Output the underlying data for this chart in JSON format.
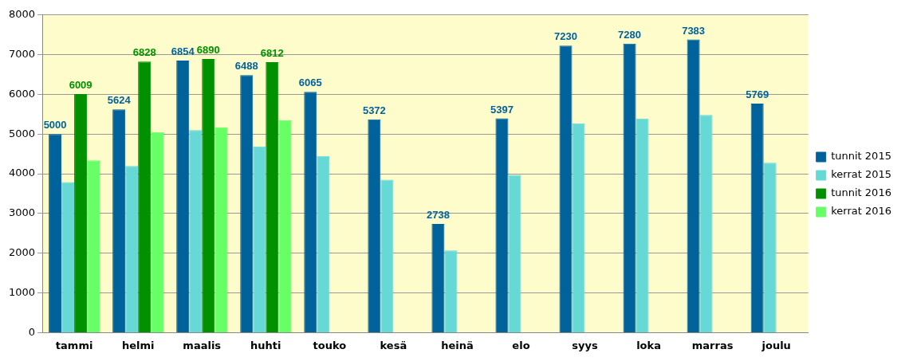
{
  "chart_data": {
    "type": "bar",
    "categories": [
      "tammi",
      "helmi",
      "maalis",
      "huhti",
      "touko",
      "kesä",
      "heinä",
      "elo",
      "syys",
      "loka",
      "marras",
      "joulu"
    ],
    "series": [
      {
        "name": "tunnit 2015",
        "color": "#00629b",
        "values": [
          5000,
          5624,
          6854,
          6488,
          6065,
          5372,
          2738,
          5397,
          7230,
          7280,
          7383,
          5769
        ],
        "value_labels": [
          "5000",
          "5624",
          "6854",
          "6488",
          "6065",
          "5372",
          "2738",
          "5397",
          "7230",
          "7280",
          "7383",
          "5769"
        ]
      },
      {
        "name": "kerrat 2015",
        "color": "#66d9d6",
        "values": [
          3790,
          4200,
          5100,
          4690,
          4450,
          3850,
          2070,
          3970,
          5270,
          5390,
          5480,
          4280
        ]
      },
      {
        "name": "tunnit 2016",
        "color": "#009000",
        "values": [
          6009,
          6828,
          6890,
          6812,
          null,
          null,
          null,
          null,
          null,
          null,
          null,
          null
        ],
        "value_labels": [
          "6009",
          "6828",
          "6890",
          "6812",
          null,
          null,
          null,
          null,
          null,
          null,
          null,
          null
        ]
      },
      {
        "name": "kerrat 2016",
        "color": "#66ff66",
        "values": [
          4340,
          5050,
          5170,
          5350,
          null,
          null,
          null,
          null,
          null,
          null,
          null,
          null
        ]
      }
    ],
    "ylim": [
      0,
      8000
    ],
    "yticks": [
      0,
      1000,
      2000,
      3000,
      4000,
      5000,
      6000,
      7000,
      8000
    ],
    "grid": "y",
    "legend": "right"
  }
}
